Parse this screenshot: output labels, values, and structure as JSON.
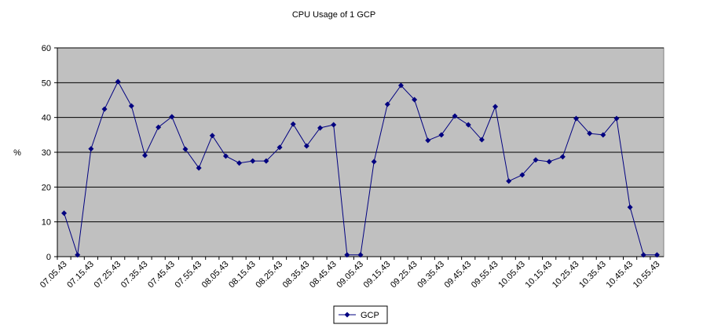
{
  "chart_data": {
    "type": "line",
    "title": "CPU Usage of 1 GCP",
    "y_label": "%",
    "categories": [
      "07.05.43",
      null,
      "07.15.43",
      null,
      "07.25.43",
      null,
      "07.35.43",
      null,
      "07.45.43",
      null,
      "07.55.43",
      null,
      "08.05.43",
      null,
      "08.15.43",
      null,
      "08.25.43",
      null,
      "08.35.43",
      null,
      "08.45.43",
      null,
      "09.05.43",
      null,
      "09.15.43",
      null,
      "09.25.43",
      null,
      "09.35.43",
      null,
      "09.45.43",
      null,
      "09.55.43",
      null,
      "10.05.43",
      null,
      "10.15.43",
      null,
      "10.25.43",
      null,
      "10.35.43",
      null,
      "10.45.43",
      null,
      "10.55.43"
    ],
    "series": [
      {
        "name": "GCP",
        "color": "#000080",
        "values": [
          12.5,
          0.5,
          31,
          42.4,
          50.3,
          43.3,
          29.1,
          37.2,
          40.2,
          30.9,
          25.5,
          34.8,
          28.9,
          26.9,
          27.5,
          27.5,
          31.4,
          38.1,
          31.8,
          37,
          37.9,
          0.5,
          0.5,
          27.3,
          43.8,
          49.2,
          45.1,
          33.4,
          35,
          40.4,
          37.9,
          33.6,
          43.1,
          21.7,
          23.5,
          27.8,
          27.3,
          28.7,
          39.7,
          35.4,
          35,
          39.7,
          14.2,
          0.5,
          0.5
        ]
      }
    ],
    "ylim": [
      0,
      60
    ],
    "yticks": [
      0,
      10,
      20,
      30,
      40,
      50,
      60
    ],
    "grid": true,
    "legend": "bottom"
  }
}
